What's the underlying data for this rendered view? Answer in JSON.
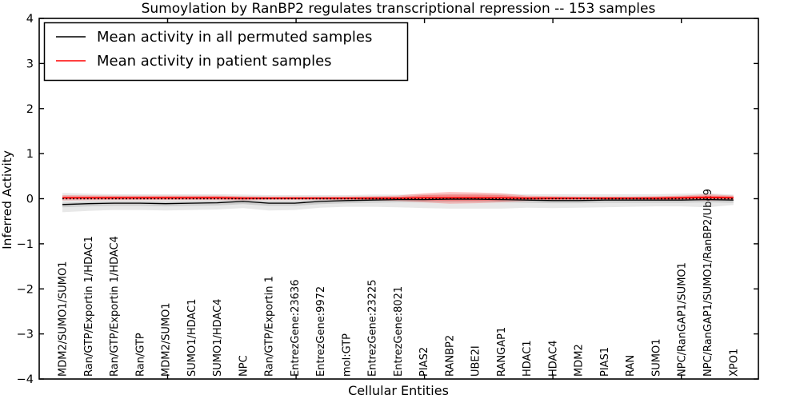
{
  "title": "Sumoylation by RanBP2 regulates transcriptional repression -- 153 samples",
  "xlabel": "Cellular Entities",
  "ylabel": "Inferred Activity",
  "legend": {
    "entries": [
      {
        "label": "Mean activity in all permuted samples",
        "color": "#000000"
      },
      {
        "label": "Mean activity in patient samples",
        "color": "#ff0000"
      }
    ]
  },
  "colors": {
    "permuted_line": "#000000",
    "patient_line": "#ff0000",
    "permuted_band": "rgba(128,128,128,0.18)",
    "permuted_band_inner": "rgba(110,110,110,0.22)",
    "patient_band": "rgba(255,30,30,0.25)",
    "patient_band_inner": "rgba(255,30,30,0.30)",
    "reference_line": "#000000",
    "axis": "#000000"
  },
  "chart_data": {
    "type": "line",
    "title": "Sumoylation by RanBP2 regulates transcriptional repression -- 153 samples",
    "xlabel": "Cellular Entities",
    "ylabel": "Inferred Activity",
    "sample_count": 153,
    "grid": false,
    "legend_position": "upper left",
    "y_axis": {
      "lim": [
        -4,
        4
      ],
      "tick_values": [
        4,
        3,
        2,
        1,
        0,
        -1,
        -2,
        -3,
        -4
      ],
      "tick_labels": [
        "4",
        "3",
        "2",
        "1",
        "0",
        "−1",
        "−2",
        "−3",
        "−4"
      ]
    },
    "x_axis": {
      "lim": [
        0,
        28
      ],
      "tick_values": [
        5,
        10,
        15,
        20,
        25
      ],
      "tick_labels_shown": false
    },
    "categories": [
      "MDM2/SUMO1/SUMO1",
      "Ran/GTP/Exportin 1/HDAC1",
      "Ran/GTP/Exportin 1/HDAC4",
      "Ran/GTP",
      "MDM2/SUMO1",
      "SUMO1/HDAC1",
      "SUMO1/HDAC4",
      "NPC",
      "Ran/GTP/Exportin 1",
      "EntrezGene:23636",
      "EntrezGene:9972",
      "mol:GTP",
      "EntrezGene:23225",
      "EntrezGene:8021",
      "PIAS2",
      "RANBP2",
      "UBE2I",
      "RANGAP1",
      "HDAC1",
      "HDAC4",
      "MDM2",
      "PIAS1",
      "RAN",
      "SUMO1",
      "NPC/RanGAP1/SUMO1",
      "NPC/RanGAP1/SUMO1/RanBP2/Ubc9",
      "XPO1"
    ],
    "reference_line": {
      "y": 0,
      "style": "dotted",
      "color": "#000000"
    },
    "series": [
      {
        "name": "Mean activity in all permuted samples",
        "color": "#000000",
        "width": 1.3,
        "values": [
          -0.13,
          -0.11,
          -0.1,
          -0.1,
          -0.11,
          -0.1,
          -0.09,
          -0.06,
          -0.1,
          -0.1,
          -0.06,
          -0.04,
          -0.03,
          -0.02,
          -0.02,
          -0.01,
          -0.01,
          -0.02,
          -0.03,
          -0.04,
          -0.04,
          -0.03,
          -0.03,
          -0.03,
          -0.03,
          -0.02,
          -0.03
        ]
      },
      {
        "name": "Mean activity in patient samples",
        "color": "#ff0000",
        "width": 1.8,
        "values": [
          0.02,
          0.02,
          0.02,
          0.02,
          0.02,
          0.02,
          0.02,
          0.01,
          0.01,
          0.01,
          0.01,
          0.01,
          0.01,
          0.01,
          0.02,
          0.02,
          0.02,
          0.02,
          0.01,
          0.01,
          0.01,
          0.01,
          0.01,
          0.01,
          0.02,
          0.03,
          0.02
        ]
      }
    ],
    "bands": [
      {
        "name": "permuted-range-outer",
        "color": "rgba(128,128,128,0.18)",
        "upper": [
          0.13,
          0.11,
          0.1,
          0.1,
          0.1,
          0.1,
          0.1,
          0.09,
          0.08,
          0.08,
          0.08,
          0.08,
          0.09,
          0.09,
          0.1,
          0.11,
          0.11,
          0.11,
          0.1,
          0.1,
          0.1,
          0.1,
          0.1,
          0.1,
          0.11,
          0.12,
          0.09
        ],
        "lower": [
          -0.3,
          -0.27,
          -0.25,
          -0.25,
          -0.26,
          -0.25,
          -0.24,
          -0.21,
          -0.26,
          -0.25,
          -0.2,
          -0.18,
          -0.18,
          -0.19,
          -0.21,
          -0.22,
          -0.22,
          -0.22,
          -0.2,
          -0.21,
          -0.2,
          -0.19,
          -0.18,
          -0.17,
          -0.17,
          -0.19,
          -0.14
        ]
      },
      {
        "name": "permuted-range-inner",
        "color": "rgba(110,110,110,0.22)",
        "upper": [
          -0.09,
          -0.07,
          -0.06,
          -0.06,
          -0.07,
          -0.06,
          -0.05,
          -0.02,
          -0.06,
          -0.06,
          -0.02,
          0.0,
          0.01,
          0.02,
          0.02,
          0.03,
          0.03,
          0.02,
          0.01,
          0.0,
          0.0,
          0.01,
          0.01,
          0.01,
          0.01,
          0.02,
          0.01
        ],
        "lower": [
          -0.19,
          -0.17,
          -0.16,
          -0.16,
          -0.17,
          -0.16,
          -0.15,
          -0.12,
          -0.16,
          -0.16,
          -0.12,
          -0.1,
          -0.09,
          -0.08,
          -0.08,
          -0.07,
          -0.07,
          -0.08,
          -0.09,
          -0.1,
          -0.1,
          -0.09,
          -0.09,
          -0.09,
          -0.09,
          -0.08,
          -0.09
        ]
      },
      {
        "name": "patient-range-outer",
        "color": "rgba(255,30,30,0.25)",
        "upper": [
          0.08,
          0.075,
          0.07,
          0.07,
          0.07,
          0.07,
          0.07,
          0.055,
          0.05,
          0.05,
          0.05,
          0.05,
          0.055,
          0.07,
          0.12,
          0.15,
          0.14,
          0.12,
          0.07,
          0.055,
          0.05,
          0.05,
          0.05,
          0.055,
          0.07,
          0.1,
          0.07
        ],
        "lower": [
          -0.04,
          -0.035,
          -0.03,
          -0.03,
          -0.03,
          -0.03,
          -0.03,
          -0.035,
          -0.03,
          -0.03,
          -0.03,
          -0.03,
          -0.035,
          -0.05,
          -0.08,
          -0.11,
          -0.1,
          -0.08,
          -0.05,
          -0.035,
          -0.03,
          -0.03,
          -0.03,
          -0.035,
          -0.03,
          -0.04,
          -0.03
        ]
      },
      {
        "name": "patient-range-inner",
        "color": "rgba(255,30,30,0.30)",
        "upper": [
          0.05,
          0.05,
          0.05,
          0.05,
          0.05,
          0.05,
          0.05,
          0.04,
          0.03,
          0.03,
          0.03,
          0.03,
          0.04,
          0.04,
          0.08,
          0.09,
          0.09,
          0.08,
          0.04,
          0.04,
          0.03,
          0.03,
          0.03,
          0.04,
          0.05,
          0.07,
          0.05
        ],
        "lower": [
          -0.01,
          -0.01,
          -0.01,
          -0.01,
          -0.01,
          -0.01,
          -0.01,
          -0.02,
          -0.01,
          -0.01,
          -0.01,
          -0.01,
          -0.02,
          -0.02,
          -0.04,
          -0.05,
          -0.05,
          -0.04,
          -0.02,
          -0.02,
          -0.01,
          -0.01,
          -0.01,
          -0.02,
          -0.01,
          -0.01,
          -0.01
        ]
      }
    ]
  }
}
